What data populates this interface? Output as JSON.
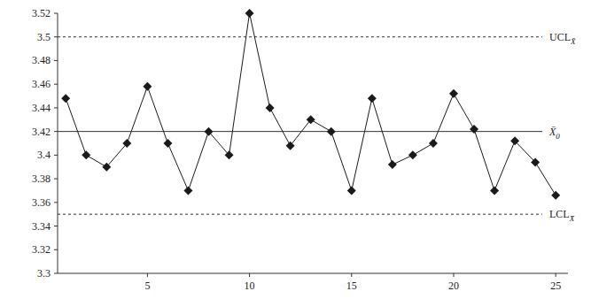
{
  "chart_data": {
    "type": "line",
    "x": [
      1,
      2,
      3,
      4,
      5,
      6,
      7,
      8,
      9,
      10,
      11,
      12,
      13,
      14,
      15,
      16,
      17,
      18,
      19,
      20,
      21,
      22,
      23,
      24,
      25
    ],
    "series": [
      {
        "name": "X̄",
        "color": "#1a1a1a",
        "marker": "diamond",
        "line_style": "solid",
        "values": [
          3.448,
          3.4,
          3.39,
          3.41,
          3.458,
          3.41,
          3.37,
          3.42,
          3.4,
          3.52,
          3.44,
          3.408,
          3.43,
          3.42,
          3.37,
          3.448,
          3.392,
          3.4,
          3.41,
          3.452,
          3.422,
          3.37,
          3.412,
          3.394,
          3.366
        ]
      }
    ],
    "control_limits": [
      {
        "label": "UCL",
        "subscript": "X̄",
        "value": 3.5,
        "line_style": "dashed"
      },
      {
        "label": "X̄",
        "subscript": "0",
        "value": 3.42,
        "line_style": "solid"
      },
      {
        "label": "LCL",
        "subscript": "X̄",
        "value": 3.35,
        "line_style": "dashed"
      }
    ],
    "xlim": [
      0.6,
      25.6
    ],
    "xticks": [
      5,
      10,
      15,
      20,
      25
    ],
    "ylim": [
      3.3,
      3.52
    ],
    "yticks": [
      {
        "value": 3.3,
        "label": "3.3"
      },
      3.32,
      3.34,
      3.36,
      3.38,
      {
        "value": 3.4,
        "label": "3.4"
      },
      3.42,
      3.44,
      3.46,
      3.48,
      {
        "value": 3.5,
        "label": "3.5"
      },
      3.52
    ],
    "grid": false
  }
}
